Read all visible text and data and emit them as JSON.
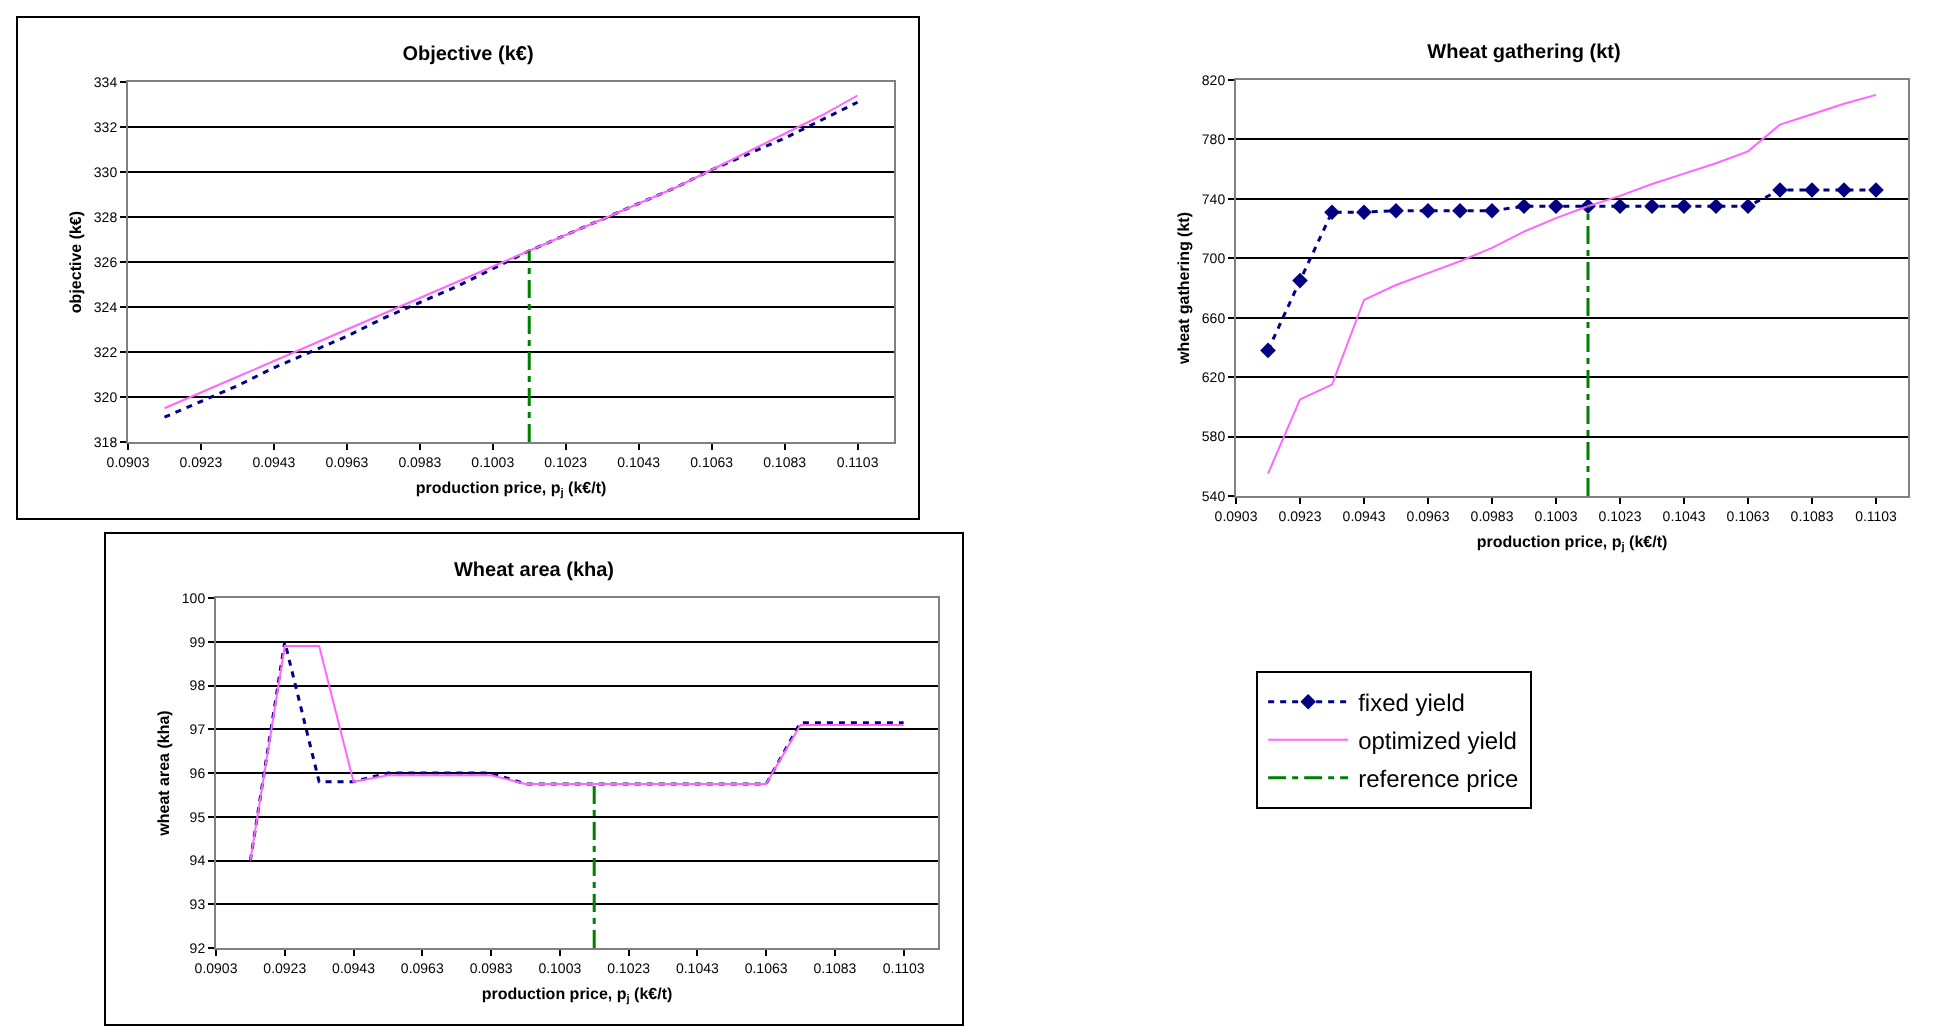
{
  "chart_data": [
    {
      "type": "line",
      "title": "Objective (k€)",
      "xlabel": "production price, p$_{j}$ (k€/t)",
      "ylabel": "objective (k€)",
      "x": [
        0.0913,
        0.0923,
        0.0933,
        0.0943,
        0.0953,
        0.0963,
        0.0973,
        0.0983,
        0.0993,
        0.1003,
        0.1013,
        0.1023,
        0.1033,
        0.1043,
        0.1053,
        0.1063,
        0.1073,
        0.1083,
        0.1093,
        0.1103
      ],
      "series": [
        {
          "color": "#000080",
          "line_style": "dotted",
          "values": [
            319.1,
            319.8,
            320.5,
            321.3,
            322.0,
            322.7,
            323.5,
            324.2,
            324.9,
            325.7,
            326.5,
            327.2,
            327.9,
            328.6,
            329.3,
            330.1,
            330.8,
            331.5,
            332.3,
            333.1
          ]
        },
        {
          "color": "#ff66ff",
          "line_style": "solid",
          "values": [
            319.5,
            320.2,
            320.9,
            321.6,
            322.3,
            323.0,
            323.7,
            324.4,
            325.1,
            325.8,
            326.5,
            327.2,
            327.9,
            328.6,
            329.3,
            330.1,
            330.9,
            331.7,
            332.5,
            333.4
          ]
        }
      ],
      "ref_lines": [
        {
          "axis": "x",
          "value": 0.1013,
          "color": "#008000",
          "line_style": "dashdot"
        }
      ],
      "xlim": [
        0.0903,
        0.1113
      ],
      "xticks": [
        0.0903,
        0.0923,
        0.0943,
        0.0963,
        0.0983,
        0.1003,
        0.1023,
        0.1043,
        0.1063,
        0.1083,
        0.1103
      ],
      "ylim": [
        318,
        334
      ],
      "yticks": [
        318,
        320,
        322,
        324,
        326,
        328,
        330,
        332,
        334
      ],
      "grid": "y",
      "legend": false
    },
    {
      "type": "line",
      "title": "Wheat gathering (kt)",
      "xlabel": "production price, p$_{j}$ (k€/t)",
      "ylabel": "wheat gathering (kt)",
      "x": [
        0.0913,
        0.0923,
        0.0933,
        0.0943,
        0.0953,
        0.0963,
        0.0973,
        0.0983,
        0.0993,
        0.1003,
        0.1013,
        0.1023,
        0.1033,
        0.1043,
        0.1053,
        0.1063,
        0.1073,
        0.1083,
        0.1093,
        0.1103
      ],
      "series": [
        {
          "name": "fixed yield",
          "color": "#000080",
          "line_style": "dotted",
          "marker": "diamond",
          "values": [
            638,
            685,
            731,
            731,
            732,
            732,
            732,
            732,
            735,
            735,
            735,
            735,
            735,
            735,
            735,
            735,
            746,
            746,
            746,
            746
          ]
        },
        {
          "name": "optimized yield",
          "color": "#ff66ff",
          "line_style": "solid",
          "values": [
            555,
            605,
            615,
            672,
            682,
            690,
            698,
            707,
            718,
            727,
            735,
            742,
            750,
            757,
            764,
            772,
            790,
            797,
            804,
            810
          ]
        }
      ],
      "ref_lines": [
        {
          "axis": "x",
          "value": 0.1013,
          "color": "#008000",
          "line_style": "dashdot",
          "label": "reference price"
        }
      ],
      "xlim": [
        0.0903,
        0.1113
      ],
      "xticks": [
        0.0903,
        0.0923,
        0.0943,
        0.0963,
        0.0983,
        0.1003,
        0.1023,
        0.1043,
        0.1063,
        0.1083,
        0.1103
      ],
      "ylim": [
        540,
        820
      ],
      "yticks": [
        540,
        580,
        620,
        660,
        700,
        740,
        780,
        820
      ],
      "grid": "y",
      "legend": "bottom"
    },
    {
      "type": "line",
      "title": "Wheat area (kha)",
      "xlabel": "production price, p$_{j}$ (k€/t)",
      "ylabel": "wheat area (kha)",
      "x": [
        0.0913,
        0.0923,
        0.0933,
        0.0943,
        0.0953,
        0.0963,
        0.0973,
        0.0983,
        0.0993,
        0.1003,
        0.1013,
        0.1023,
        0.1033,
        0.1043,
        0.1053,
        0.1063,
        0.1073,
        0.1083,
        0.1093,
        0.1103
      ],
      "series": [
        {
          "color": "#000080",
          "line_style": "dotted",
          "values": [
            94.0,
            99.0,
            95.8,
            95.8,
            96.0,
            96.0,
            96.0,
            96.0,
            95.75,
            95.75,
            95.75,
            95.75,
            95.75,
            95.75,
            95.75,
            95.75,
            97.15,
            97.15,
            97.15,
            97.15
          ]
        },
        {
          "color": "#ff66ff",
          "line_style": "solid",
          "values": [
            94.0,
            98.9,
            98.9,
            95.8,
            95.95,
            95.95,
            95.95,
            95.95,
            95.75,
            95.75,
            95.75,
            95.75,
            95.75,
            95.75,
            95.75,
            95.75,
            97.1,
            97.1,
            97.1,
            97.1
          ]
        }
      ],
      "ref_lines": [
        {
          "axis": "x",
          "value": 0.1013,
          "color": "#008000",
          "line_style": "dashdot"
        }
      ],
      "xlim": [
        0.0903,
        0.1113
      ],
      "xticks": [
        0.0903,
        0.0923,
        0.0943,
        0.0963,
        0.0983,
        0.1003,
        0.1023,
        0.1043,
        0.1063,
        0.1083,
        0.1103
      ],
      "ylim": [
        92,
        100
      ],
      "yticks": [
        92,
        93,
        94,
        95,
        96,
        97,
        98,
        99,
        100
      ],
      "grid": "y",
      "legend": false
    }
  ]
}
